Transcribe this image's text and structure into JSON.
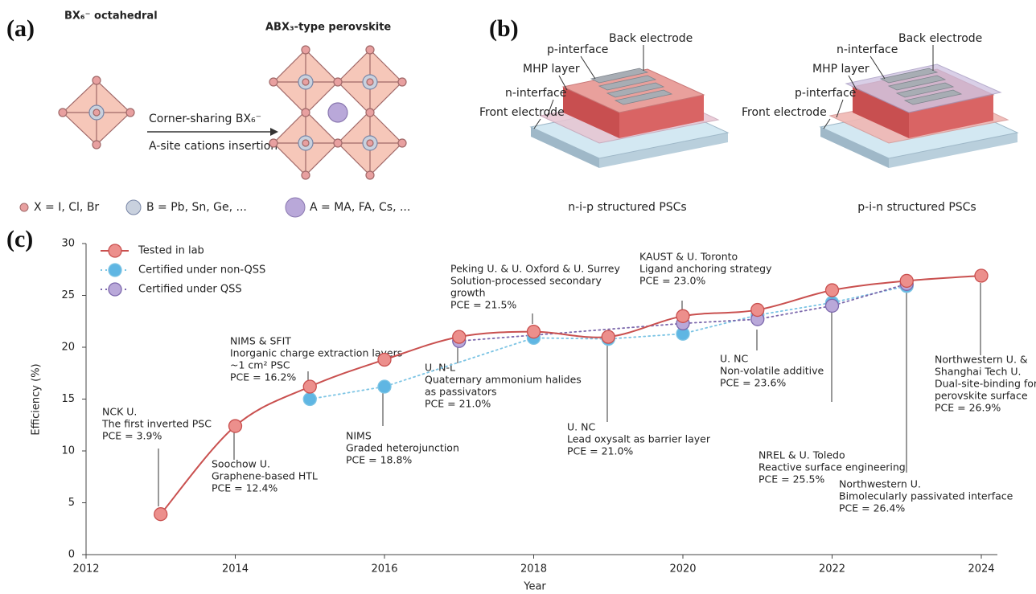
{
  "panel_a": {
    "label": "(a)",
    "left_title": "BX₆⁻ octahedral",
    "right_title": "ABX₃-type perovskite",
    "arrow_top": "Corner-sharing  BX₆⁻",
    "arrow_bottom": "A-site cations insertion",
    "legend": [
      "X = I, Cl, Br",
      "B = Pb, Sn, Ge, ...",
      "A = MA, FA, Cs, ..."
    ]
  },
  "panel_b": {
    "label": "(b)",
    "devices": [
      {
        "caption": "n-i-p structured PSCs",
        "layers": [
          "Back electrode",
          "p-interface",
          "MHP layer",
          "n-interface",
          "Front electrode"
        ]
      },
      {
        "caption": "p-i-n structured PSCs",
        "layers": [
          "Back electrode",
          "n-interface",
          "MHP layer",
          "p-interface",
          "Front electrode"
        ]
      }
    ]
  },
  "chart_data": {
    "type": "line",
    "panel_label": "(c)",
    "x_label": "Year",
    "y_label": "Efficiency (%)",
    "xlim": [
      2012,
      2024
    ],
    "xticks": [
      2012,
      2014,
      2016,
      2018,
      2020,
      2022,
      2024
    ],
    "ylim": [
      0,
      30
    ],
    "yticks": [
      0,
      5,
      10,
      15,
      20,
      25,
      30
    ],
    "series": [
      {
        "name": "Tested in lab",
        "color": "#c9504f",
        "marker_color": "#ec8f8c",
        "style": "solid",
        "x": [
          2013,
          2014,
          2015,
          2016,
          2017,
          2018,
          2019,
          2020,
          2021,
          2022,
          2023,
          2024
        ],
        "values": [
          3.9,
          12.4,
          16.2,
          18.8,
          21.0,
          21.5,
          21.0,
          23.0,
          23.6,
          25.5,
          26.4,
          26.9
        ]
      },
      {
        "name": "Certified under non-QSS",
        "color": "#7cc4e4",
        "marker_color": "#5fb6e3",
        "style": "dotted",
        "x": [
          2015,
          2016,
          2018,
          2019,
          2020,
          2021,
          2022,
          2023
        ],
        "values": [
          15.0,
          16.2,
          20.9,
          20.8,
          21.3,
          23.1,
          24.3,
          25.9
        ]
      },
      {
        "name": "Certified under QSS",
        "color": "#7c68ac",
        "marker_color": "#b9a8d9",
        "style": "dotted",
        "x": [
          2017,
          2020,
          2021,
          2022,
          2023
        ],
        "values": [
          20.6,
          22.3,
          22.7,
          24.0,
          26.1
        ]
      }
    ],
    "annotations": [
      {
        "lines": [
          "NCK U.",
          "The first inverted PSC",
          "PCE = 3.9%"
        ]
      },
      {
        "lines": [
          "Soochow U.",
          "Graphene-based HTL",
          "PCE = 12.4%"
        ]
      },
      {
        "lines": [
          "NIMS & SFIT",
          "Inorganic charge extraction layers",
          "~1 cm² PSC",
          "PCE = 16.2%"
        ]
      },
      {
        "lines": [
          "NIMS",
          "Graded heterojunction",
          "PCE = 18.8%"
        ]
      },
      {
        "lines": [
          "U. N-L",
          "Quaternary ammonium halides",
          "as passivators",
          "PCE = 21.0%"
        ]
      },
      {
        "lines": [
          "Peking U. & U. Oxford & U. Surrey",
          "Solution-processed secondary",
          "growth",
          "PCE = 21.5%"
        ]
      },
      {
        "lines": [
          "U. NC",
          "Lead oxysalt as barrier layer",
          "PCE = 21.0%"
        ]
      },
      {
        "lines": [
          "KAUST & U. Toronto",
          "Ligand anchoring strategy",
          "PCE = 23.0%"
        ]
      },
      {
        "lines": [
          "U. NC",
          "Non-volatile additive",
          "PCE = 23.6%"
        ]
      },
      {
        "lines": [
          "NREL & U. Toledo",
          "Reactive surface engineering",
          "PCE = 25.5%"
        ]
      },
      {
        "lines": [
          "Northwestern U.",
          "Bimolecularly passivated interface",
          "PCE = 26.4%"
        ]
      },
      {
        "lines": [
          "Northwestern U. &",
          "Shanghai Tech U.",
          "Dual-site-binding for",
          "perovskite surface",
          "PCE = 26.9%"
        ]
      }
    ]
  }
}
